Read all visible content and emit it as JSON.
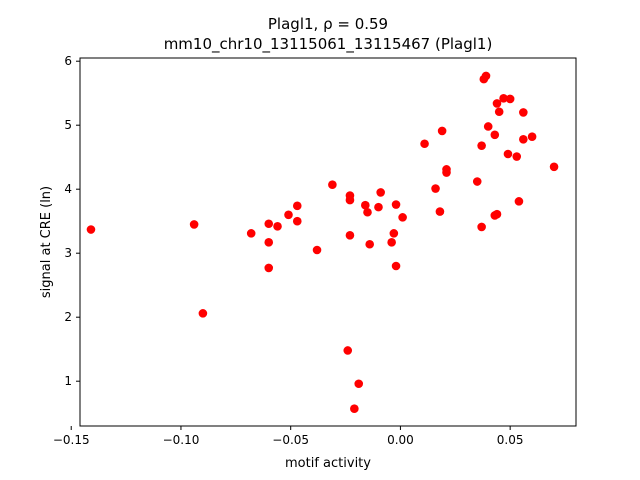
{
  "chart_data": {
    "type": "scatter",
    "title": "Plagl1, ρ = 0.59",
    "subtitle": "mm10_chr10_13115061_13115467 (Plagl1)",
    "xlabel": "motif activity",
    "ylabel": "signal at CRE (ln)",
    "xlim": [
      -0.146,
      0.08
    ],
    "ylim": [
      0.3,
      6.05
    ],
    "x_ticks": [
      -0.15,
      -0.1,
      -0.05,
      0.0,
      0.05
    ],
    "x_tick_labels": [
      "−0.15",
      "−0.10",
      "−0.05",
      "0.00",
      "0.05"
    ],
    "y_ticks": [
      1,
      2,
      3,
      4,
      5,
      6
    ],
    "y_tick_labels": [
      "1",
      "2",
      "3",
      "4",
      "5",
      "6"
    ],
    "grid": false,
    "legend": "none",
    "marker_color": "#ff0000",
    "points": [
      [
        -0.141,
        3.37
      ],
      [
        -0.094,
        3.45
      ],
      [
        -0.09,
        2.06
      ],
      [
        -0.068,
        3.31
      ],
      [
        -0.06,
        3.46
      ],
      [
        -0.06,
        3.17
      ],
      [
        -0.06,
        2.77
      ],
      [
        -0.056,
        3.42
      ],
      [
        -0.051,
        3.6
      ],
      [
        -0.047,
        3.74
      ],
      [
        -0.047,
        3.5
      ],
      [
        -0.038,
        3.05
      ],
      [
        -0.031,
        4.07
      ],
      [
        -0.024,
        1.48
      ],
      [
        -0.023,
        3.9
      ],
      [
        -0.023,
        3.83
      ],
      [
        -0.023,
        3.28
      ],
      [
        -0.021,
        0.57
      ],
      [
        -0.019,
        0.96
      ],
      [
        -0.016,
        3.75
      ],
      [
        -0.015,
        3.64
      ],
      [
        -0.014,
        3.14
      ],
      [
        -0.01,
        3.72
      ],
      [
        -0.009,
        3.95
      ],
      [
        -0.004,
        3.17
      ],
      [
        -0.003,
        3.31
      ],
      [
        -0.002,
        3.76
      ],
      [
        -0.002,
        2.8
      ],
      [
        0.001,
        3.56
      ],
      [
        0.011,
        4.71
      ],
      [
        0.016,
        4.01
      ],
      [
        0.018,
        3.65
      ],
      [
        0.019,
        4.91
      ],
      [
        0.021,
        4.26
      ],
      [
        0.021,
        4.31
      ],
      [
        0.035,
        4.12
      ],
      [
        0.037,
        3.41
      ],
      [
        0.037,
        4.68
      ],
      [
        0.038,
        5.72
      ],
      [
        0.039,
        5.77
      ],
      [
        0.04,
        4.98
      ],
      [
        0.043,
        3.59
      ],
      [
        0.043,
        4.85
      ],
      [
        0.044,
        3.61
      ],
      [
        0.044,
        5.34
      ],
      [
        0.045,
        5.21
      ],
      [
        0.047,
        5.42
      ],
      [
        0.049,
        4.55
      ],
      [
        0.05,
        5.41
      ],
      [
        0.053,
        4.51
      ],
      [
        0.054,
        3.81
      ],
      [
        0.056,
        4.78
      ],
      [
        0.056,
        5.2
      ],
      [
        0.06,
        4.82
      ],
      [
        0.07,
        4.35
      ]
    ]
  }
}
